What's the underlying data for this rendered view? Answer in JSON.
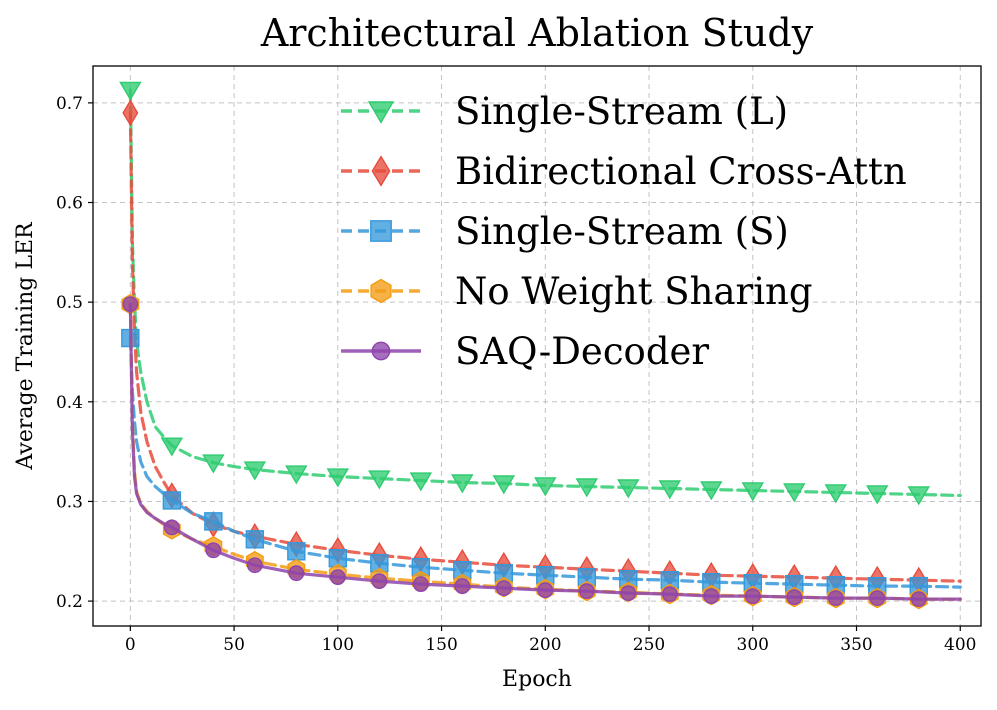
{
  "chart_data": {
    "type": "line",
    "title": "Architectural Ablation Study",
    "xlabel": "Epoch",
    "ylabel": "Average Training LER",
    "xlim": [
      -18,
      410
    ],
    "ylim": [
      0.175,
      0.737
    ],
    "xticks": [
      0,
      50,
      100,
      150,
      200,
      250,
      300,
      350,
      400
    ],
    "yticks": [
      0.2,
      0.3,
      0.4,
      0.5,
      0.6,
      0.7
    ],
    "xtick_labels": [
      "0",
      "50",
      "100",
      "150",
      "200",
      "250",
      "300",
      "350",
      "400"
    ],
    "ytick_labels": [
      "0.2",
      "0.3",
      "0.4",
      "0.5",
      "0.6",
      "0.7"
    ],
    "grid": true,
    "legend_position": "upper-right",
    "series": [
      {
        "name": "Single-Stream (L)",
        "color": "#2ecc71",
        "linestyle": "dashed",
        "marker": "triangle-down",
        "x": [
          0,
          1,
          2,
          3,
          5,
          8,
          12,
          16,
          20,
          30,
          40,
          50,
          60,
          80,
          100,
          120,
          140,
          160,
          180,
          200,
          220,
          240,
          260,
          280,
          300,
          320,
          340,
          360,
          380,
          400
        ],
        "y": [
          0.713,
          0.56,
          0.5,
          0.46,
          0.43,
          0.4,
          0.375,
          0.365,
          0.356,
          0.345,
          0.339,
          0.335,
          0.332,
          0.328,
          0.325,
          0.323,
          0.321,
          0.319,
          0.318,
          0.316,
          0.315,
          0.314,
          0.313,
          0.312,
          0.311,
          0.31,
          0.309,
          0.308,
          0.307,
          0.306
        ],
        "marker_x": [
          0,
          20,
          40,
          60,
          80,
          100,
          120,
          140,
          160,
          180,
          200,
          220,
          240,
          260,
          280,
          300,
          320,
          340,
          360,
          380
        ],
        "marker_y": [
          0.713,
          0.356,
          0.339,
          0.332,
          0.328,
          0.325,
          0.323,
          0.321,
          0.319,
          0.318,
          0.316,
          0.315,
          0.314,
          0.313,
          0.312,
          0.311,
          0.31,
          0.309,
          0.308,
          0.307
        ]
      },
      {
        "name": "Bidirectional Cross-Attn",
        "color": "#e74c3c",
        "linestyle": "dashed",
        "marker": "diamond",
        "x": [
          0,
          1,
          2,
          3,
          5,
          8,
          12,
          16,
          20,
          30,
          40,
          50,
          60,
          80,
          100,
          120,
          140,
          160,
          180,
          200,
          220,
          240,
          260,
          280,
          300,
          320,
          340,
          360,
          380,
          400
        ],
        "y": [
          0.69,
          0.54,
          0.47,
          0.43,
          0.39,
          0.36,
          0.335,
          0.32,
          0.306,
          0.288,
          0.277,
          0.27,
          0.265,
          0.257,
          0.251,
          0.246,
          0.242,
          0.239,
          0.236,
          0.234,
          0.232,
          0.23,
          0.228,
          0.226,
          0.225,
          0.224,
          0.223,
          0.222,
          0.221,
          0.22
        ],
        "marker_x": [
          0,
          20,
          40,
          60,
          80,
          100,
          120,
          140,
          160,
          180,
          200,
          220,
          240,
          260,
          280,
          300,
          320,
          340,
          360,
          380
        ],
        "marker_y": [
          0.69,
          0.306,
          0.277,
          0.265,
          0.257,
          0.251,
          0.246,
          0.242,
          0.239,
          0.236,
          0.234,
          0.232,
          0.23,
          0.228,
          0.226,
          0.225,
          0.224,
          0.223,
          0.222,
          0.221
        ]
      },
      {
        "name": "Single-Stream (S)",
        "color": "#3498db",
        "linestyle": "dashed",
        "marker": "square",
        "x": [
          0,
          1,
          2,
          3,
          5,
          8,
          12,
          16,
          20,
          30,
          40,
          50,
          60,
          80,
          100,
          120,
          140,
          160,
          180,
          200,
          220,
          240,
          260,
          280,
          300,
          320,
          340,
          360,
          380,
          400
        ],
        "y": [
          0.464,
          0.41,
          0.38,
          0.36,
          0.34,
          0.325,
          0.315,
          0.308,
          0.301,
          0.288,
          0.28,
          0.27,
          0.262,
          0.25,
          0.243,
          0.238,
          0.234,
          0.231,
          0.228,
          0.226,
          0.224,
          0.222,
          0.221,
          0.219,
          0.218,
          0.217,
          0.216,
          0.215,
          0.215,
          0.214
        ],
        "marker_x": [
          0,
          20,
          40,
          60,
          80,
          100,
          120,
          140,
          160,
          180,
          200,
          220,
          240,
          260,
          280,
          300,
          320,
          340,
          360,
          380
        ],
        "marker_y": [
          0.464,
          0.301,
          0.28,
          0.262,
          0.25,
          0.243,
          0.238,
          0.234,
          0.231,
          0.228,
          0.226,
          0.224,
          0.222,
          0.221,
          0.219,
          0.218,
          0.217,
          0.216,
          0.215,
          0.215
        ]
      },
      {
        "name": "No Weight Sharing",
        "color": "#f39c12",
        "linestyle": "dashed",
        "marker": "hexagon",
        "x": [
          0,
          1,
          2,
          3,
          5,
          8,
          12,
          16,
          20,
          30,
          40,
          50,
          60,
          80,
          100,
          120,
          140,
          160,
          180,
          200,
          220,
          240,
          260,
          280,
          300,
          320,
          340,
          360,
          380,
          400
        ],
        "y": [
          0.498,
          0.38,
          0.33,
          0.31,
          0.298,
          0.29,
          0.283,
          0.277,
          0.272,
          0.262,
          0.255,
          0.247,
          0.24,
          0.232,
          0.227,
          0.223,
          0.22,
          0.217,
          0.214,
          0.212,
          0.21,
          0.209,
          0.207,
          0.206,
          0.205,
          0.204,
          0.203,
          0.203,
          0.202,
          0.202
        ],
        "marker_x": [
          0,
          20,
          40,
          60,
          80,
          100,
          120,
          140,
          160,
          180,
          200,
          220,
          240,
          260,
          280,
          300,
          320,
          340,
          360,
          380
        ],
        "marker_y": [
          0.498,
          0.272,
          0.255,
          0.24,
          0.232,
          0.227,
          0.223,
          0.22,
          0.217,
          0.214,
          0.212,
          0.21,
          0.209,
          0.207,
          0.206,
          0.205,
          0.204,
          0.203,
          0.203,
          0.202
        ]
      },
      {
        "name": "SAQ-Decoder",
        "color": "#8e44ad",
        "linestyle": "solid",
        "marker": "circle",
        "x": [
          0,
          1,
          2,
          3,
          5,
          8,
          12,
          16,
          20,
          30,
          40,
          50,
          60,
          80,
          100,
          120,
          140,
          160,
          180,
          200,
          220,
          240,
          260,
          280,
          300,
          320,
          340,
          360,
          380,
          400
        ],
        "y": [
          0.498,
          0.37,
          0.325,
          0.308,
          0.297,
          0.289,
          0.283,
          0.278,
          0.274,
          0.262,
          0.251,
          0.243,
          0.236,
          0.228,
          0.224,
          0.22,
          0.217,
          0.215,
          0.213,
          0.211,
          0.21,
          0.208,
          0.207,
          0.205,
          0.205,
          0.204,
          0.203,
          0.203,
          0.202,
          0.202
        ],
        "marker_x": [
          0,
          20,
          40,
          60,
          80,
          100,
          120,
          140,
          160,
          180,
          200,
          220,
          240,
          260,
          280,
          300,
          320,
          340,
          360,
          380
        ],
        "marker_y": [
          0.498,
          0.274,
          0.251,
          0.236,
          0.228,
          0.224,
          0.22,
          0.217,
          0.215,
          0.213,
          0.211,
          0.21,
          0.208,
          0.207,
          0.205,
          0.205,
          0.204,
          0.203,
          0.203,
          0.202
        ]
      }
    ]
  }
}
